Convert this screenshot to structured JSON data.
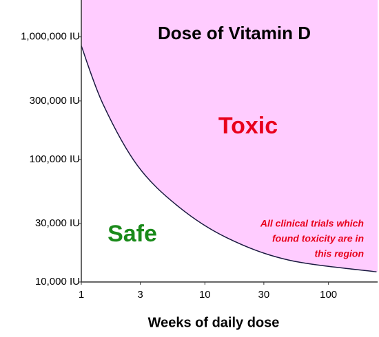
{
  "chart_data": {
    "type": "area",
    "title": "Dose of Vitamin D",
    "x_label": "Weeks of daily dose",
    "log_x": true,
    "log_y": true,
    "xlim": [
      1,
      250
    ],
    "ylim": [
      10000,
      2000000
    ],
    "xticks": [
      1,
      3,
      10,
      30,
      100
    ],
    "yticks": [
      {
        "value": 10000,
        "label": "10,000 IU"
      },
      {
        "value": 30000,
        "label": "30,000 IU"
      },
      {
        "value": 100000,
        "label": "100,000 IU"
      },
      {
        "value": 300000,
        "label": "300,000 IU"
      },
      {
        "value": 1000000,
        "label": "1,000,000 IU"
      }
    ],
    "series": [
      {
        "color": "#ffccff",
        "line_color": "#1a1a40",
        "x": [
          1,
          1.5,
          2.85,
          6.15,
          15,
          47.6,
          245
        ],
        "values": [
          845000,
          282000,
          89000,
          41000,
          23000,
          15100,
          12100
        ]
      }
    ],
    "annotations": {
      "toxic": "Toxic",
      "safe": "Safe",
      "note": [
        "All clinical trials which",
        "found toxicity are in",
        "this region"
      ]
    }
  }
}
